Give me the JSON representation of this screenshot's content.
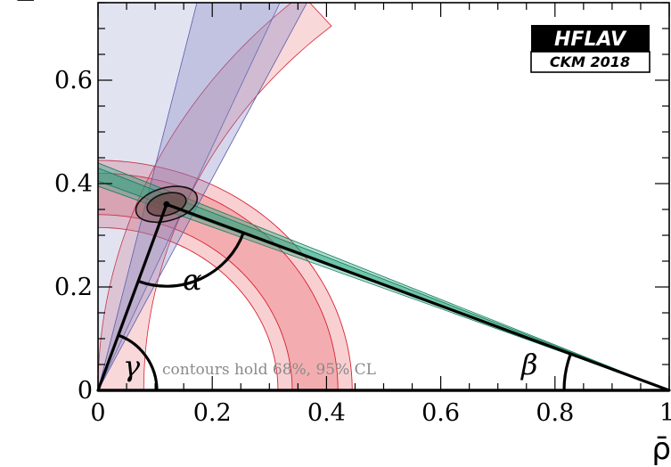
{
  "chart_data": {
    "type": "scatter",
    "title": "",
    "xlabel": "ρ̄",
    "ylabel": "η̄",
    "xlim": [
      0,
      1
    ],
    "ylim": [
      0,
      0.75
    ],
    "x_ticks": [
      "0",
      "0.2",
      "0.4",
      "0.6",
      "0.8",
      "1"
    ],
    "y_ticks": [
      "0",
      "0.2",
      "0.4",
      "0.6"
    ],
    "grid": false,
    "logo": {
      "top": "HFLAV",
      "bottom": "CKM 2018"
    },
    "note": "contours hold 68%, 95% CL",
    "apex": {
      "rho": 0.12,
      "eta": 0.36
    },
    "angle_labels": [
      "α",
      "β",
      "γ"
    ],
    "colors": {
      "vub_band": "#e8636b",
      "beta_band": "#1fa37a",
      "alpha_band": "#7b7fc0",
      "contour": "#3a3a3a"
    },
    "constraints": {
      "vub_ring": {
        "center_rho": 0,
        "center_eta": 0,
        "r_inner_95": 0.315,
        "r_inner_68": 0.34,
        "r_outer_68": 0.42,
        "r_outer_95": 0.445
      },
      "alpha_bands": [
        {
          "a1_deg": 67,
          "a2_deg": 95,
          "r_max": 0.75
        },
        {
          "a1_deg": 64,
          "a2_deg": 77,
          "r_max": 0.75
        }
      ],
      "beta_band": {
        "slope_95": [
          -0.395,
          -0.44
        ],
        "slope_68": [
          -0.405,
          -0.43
        ]
      },
      "contours": [
        {
          "rx": 0.055,
          "ry": 0.032,
          "rot_deg": -15
        },
        {
          "rx": 0.035,
          "ry": 0.021,
          "rot_deg": -15
        }
      ]
    }
  }
}
